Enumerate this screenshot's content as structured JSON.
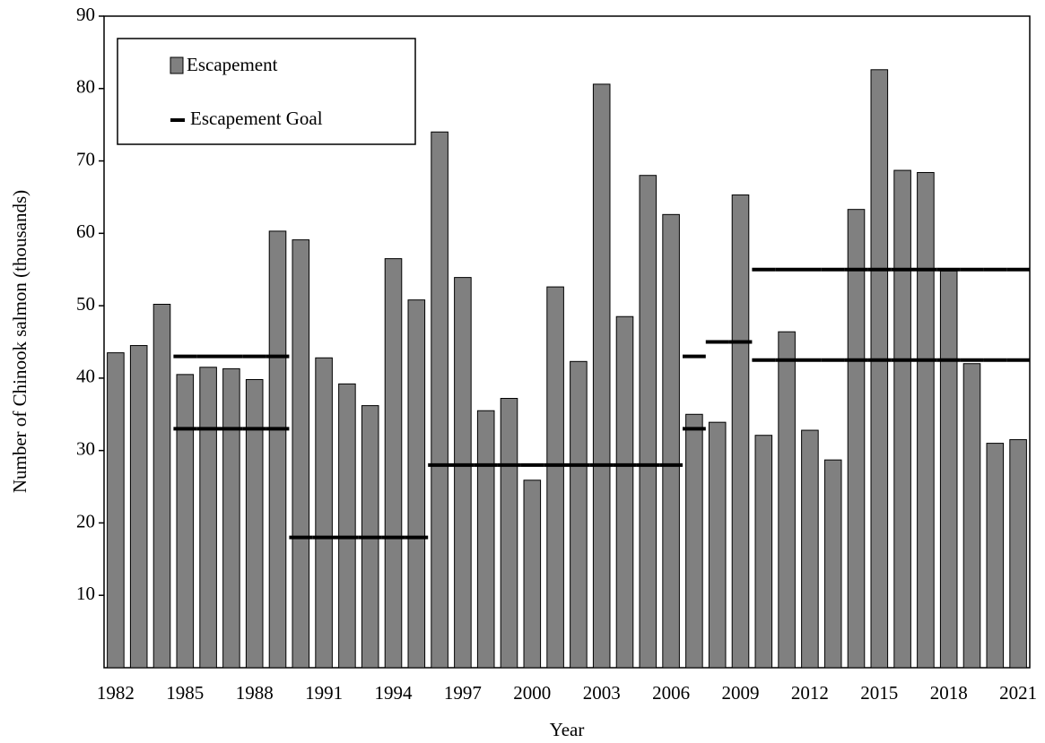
{
  "chart_data": {
    "type": "bar",
    "x_label": "Year",
    "y_label": "Number of Chinook salmon (thousands)",
    "categories": [
      "1982",
      null,
      null,
      "1985",
      null,
      null,
      "1988",
      null,
      null,
      "1991",
      null,
      null,
      "1994",
      null,
      null,
      "1997",
      null,
      null,
      "2000",
      null,
      null,
      "2003",
      null,
      null,
      "2006",
      null,
      null,
      "2009",
      null,
      null,
      "2012",
      null,
      null,
      "2015",
      null,
      null,
      "2018",
      null,
      null,
      "2021"
    ],
    "series": [
      {
        "name": "Escapement",
        "color": "#808080",
        "values": [
          43.5,
          44.5,
          50.2,
          40.5,
          41.5,
          41.3,
          39.8,
          60.3,
          59.1,
          42.8,
          39.2,
          36.2,
          56.5,
          50.8,
          74.0,
          53.9,
          35.5,
          37.2,
          25.9,
          52.6,
          42.3,
          80.6,
          48.5,
          68.0,
          62.6,
          35.0,
          33.9,
          65.3,
          32.1,
          46.4,
          32.8,
          28.7,
          63.3,
          82.6,
          68.7,
          68.4,
          54.8,
          42.0,
          31.0,
          31.5
        ]
      }
    ],
    "goal": {
      "name": "Escapement Goal",
      "color": "#000000",
      "lower": [
        null,
        null,
        null,
        33,
        33,
        33,
        33,
        33,
        18,
        18,
        18,
        18,
        18,
        18,
        28,
        28,
        28,
        28,
        28,
        28,
        28,
        28,
        28,
        28,
        28,
        33,
        45,
        45,
        42.5,
        42.5,
        42.5,
        42.5,
        42.5,
        42.5,
        42.5,
        42.5,
        42.5,
        42.5,
        42.5,
        42.5
      ],
      "upper": [
        null,
        null,
        null,
        43,
        43,
        43,
        43,
        43,
        null,
        null,
        null,
        null,
        null,
        null,
        null,
        null,
        null,
        null,
        null,
        null,
        null,
        null,
        null,
        null,
        null,
        43,
        null,
        null,
        55,
        55,
        55,
        55,
        55,
        55,
        55,
        55,
        55,
        55,
        55,
        55
      ]
    },
    "ylim": [
      0,
      90
    ],
    "yticks": [
      10,
      20,
      30,
      40,
      50,
      60,
      70,
      80,
      90
    ],
    "grid": false
  }
}
